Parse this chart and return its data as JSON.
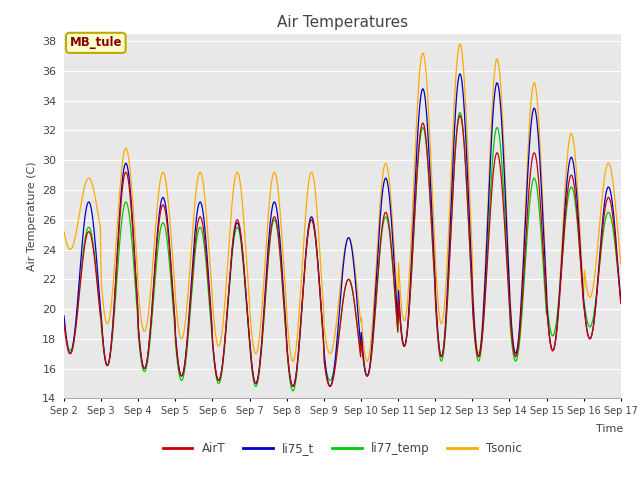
{
  "title": "Air Temperatures",
  "xlabel": "Time",
  "ylabel": "Air Temperature (C)",
  "ylim": [
    14,
    38.5
  ],
  "yticks": [
    14,
    16,
    18,
    20,
    22,
    24,
    26,
    28,
    30,
    32,
    34,
    36,
    38
  ],
  "colors": {
    "AirT": "#cc0000",
    "li75_t": "#0000cc",
    "li77_temp": "#00cc00",
    "Tsonic": "#ffaa00"
  },
  "legend_label": "MB_tule",
  "legend_box_facecolor": "#ffffcc",
  "legend_box_edgecolor": "#bbaa00",
  "legend_text_color": "#880000",
  "plot_bg_color": "#e8e8e8",
  "fig_bg_color": "#ffffff",
  "grid_color": "#ffffff",
  "tick_labels": [
    "Sep 2",
    "Sep 3",
    "Sep 4",
    "Sep 5",
    "Sep 6",
    "Sep 7",
    "Sep 8",
    "Sep 9",
    "Sep 10",
    "Sep 11",
    "Sep 12",
    "Sep 13",
    "Sep 14",
    "Sep 15",
    "Sep 16",
    "Sep 17"
  ],
  "day_mins_AirT": [
    17.0,
    16.2,
    16.0,
    15.5,
    15.2,
    15.0,
    14.8,
    14.8,
    15.5,
    17.5,
    16.8,
    16.8,
    16.8,
    17.2,
    18.0
  ],
  "day_maxs_AirT": [
    25.2,
    29.2,
    27.0,
    26.2,
    26.0,
    26.2,
    26.0,
    22.0,
    26.5,
    32.5,
    33.0,
    30.5,
    30.5,
    29.0,
    27.5
  ],
  "day_mins_li75": [
    17.0,
    16.2,
    16.0,
    15.5,
    15.2,
    15.0,
    14.8,
    14.8,
    15.5,
    17.5,
    16.8,
    16.8,
    17.0,
    17.2,
    18.0
  ],
  "day_maxs_li75": [
    27.2,
    29.8,
    27.5,
    27.2,
    25.8,
    27.2,
    26.2,
    24.8,
    28.8,
    34.8,
    35.8,
    35.2,
    33.5,
    30.2,
    28.2
  ],
  "day_mins_li77": [
    17.2,
    16.2,
    15.8,
    15.2,
    15.0,
    14.8,
    14.5,
    15.2,
    15.5,
    17.5,
    16.5,
    16.5,
    16.5,
    18.2,
    18.8
  ],
  "day_maxs_li77": [
    25.5,
    27.2,
    25.8,
    25.5,
    25.5,
    26.0,
    26.0,
    22.0,
    26.2,
    32.2,
    33.2,
    32.2,
    28.8,
    28.2,
    26.5
  ],
  "day_mins_Tsonic": [
    24.0,
    19.0,
    18.5,
    18.0,
    17.5,
    17.0,
    16.5,
    17.0,
    16.5,
    19.2,
    19.0,
    17.0,
    17.0,
    17.2,
    20.8
  ],
  "day_maxs_Tsonic": [
    28.8,
    30.8,
    29.2,
    29.2,
    29.2,
    29.2,
    29.2,
    24.8,
    29.8,
    37.2,
    37.8,
    36.8,
    35.2,
    31.8,
    29.8
  ]
}
